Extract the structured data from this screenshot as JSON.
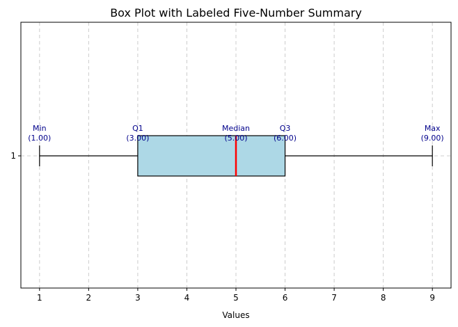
{
  "chart_data": {
    "type": "boxplot",
    "title": "Box Plot with Labeled Five-Number Summary",
    "xlabel": "Values",
    "ylabel": "",
    "orientation": "horizontal",
    "xlim": [
      0.62,
      9.38
    ],
    "x_ticks": [
      1,
      2,
      3,
      4,
      5,
      6,
      7,
      8,
      9
    ],
    "y_ticks": [
      "1"
    ],
    "grid": "vertical dashed",
    "box": {
      "min": 1.0,
      "q1": 3.0,
      "median": 5.0,
      "q3": 6.0,
      "max": 9.0
    },
    "annotations": [
      {
        "name": "Min",
        "value_text": "(1.00)",
        "x": 1.0
      },
      {
        "name": "Q1",
        "value_text": "(3.00)",
        "x": 3.0
      },
      {
        "name": "Median",
        "value_text": "(5.00)",
        "x": 5.0
      },
      {
        "name": "Q3",
        "value_text": "(6.00)",
        "x": 6.0
      },
      {
        "name": "Max",
        "value_text": "(9.00)",
        "x": 9.0
      }
    ],
    "colors": {
      "box_fill": "#add8e6",
      "median_line": "#ff0000",
      "annotation_text": "#00008b",
      "grid": "#cccccc"
    }
  }
}
